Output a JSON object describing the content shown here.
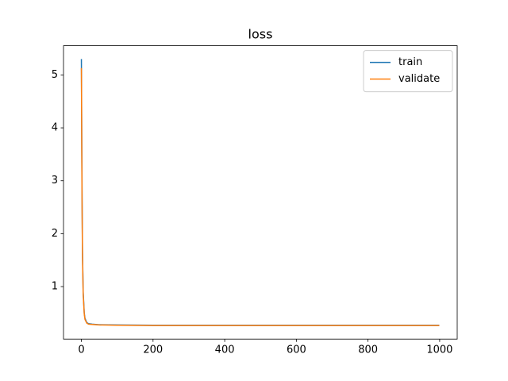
{
  "chart_data": {
    "type": "line",
    "title": "loss",
    "x": [
      0,
      1,
      2,
      3,
      5,
      8,
      10,
      15,
      20,
      30,
      50,
      100,
      200,
      400,
      600,
      800,
      999
    ],
    "series": [
      {
        "name": "train",
        "color": "#1f77b4",
        "values": [
          5.3,
          3.9,
          2.6,
          1.7,
          0.9,
          0.5,
          0.4,
          0.32,
          0.3,
          0.29,
          0.28,
          0.275,
          0.27,
          0.27,
          0.27,
          0.27,
          0.27
        ]
      },
      {
        "name": "validate",
        "color": "#ff7f0e",
        "values": [
          5.13,
          3.6,
          2.4,
          1.6,
          0.85,
          0.48,
          0.38,
          0.31,
          0.29,
          0.285,
          0.275,
          0.27,
          0.265,
          0.265,
          0.265,
          0.265,
          0.265
        ]
      }
    ],
    "xlim": [
      -49.95,
      1048.95
    ],
    "xticks": [
      0,
      200,
      400,
      600,
      800,
      1000
    ],
    "ylim": [
      0.008,
      5.552
    ],
    "yticks": [
      1,
      2,
      3,
      4,
      5
    ],
    "legend": "upper right"
  }
}
